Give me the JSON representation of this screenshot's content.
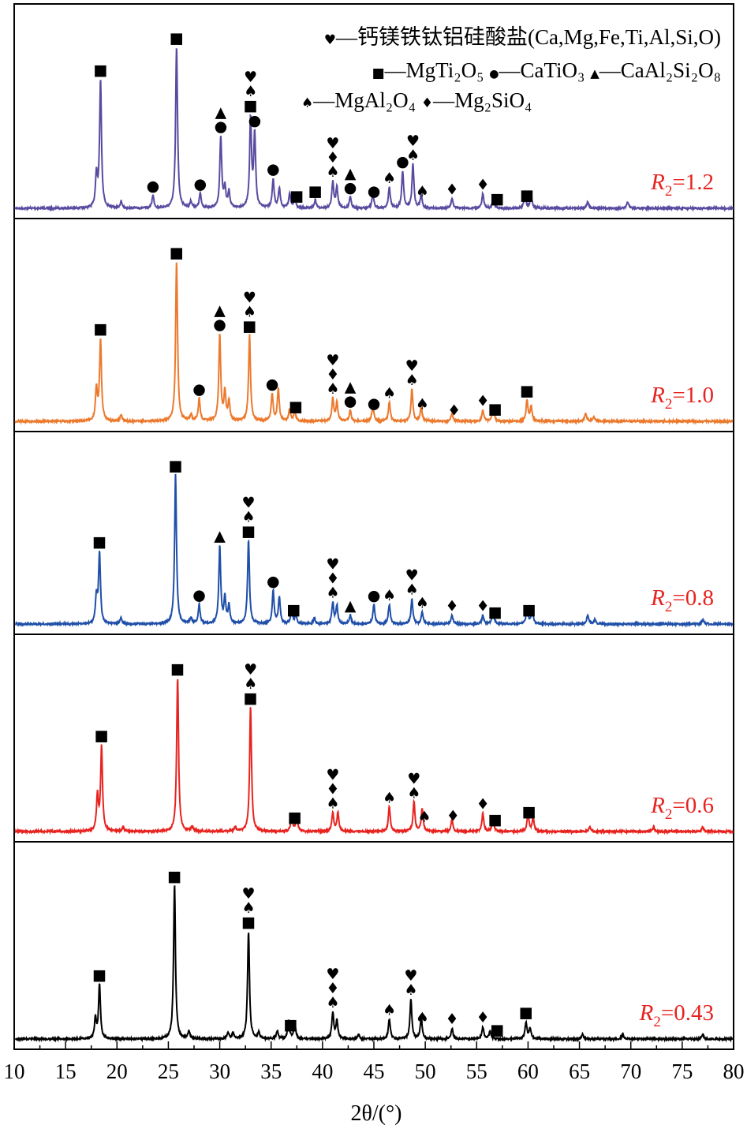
{
  "chart_data": {
    "type": "line",
    "title": "",
    "xlabel": "2θ/(°)",
    "ylabel": "",
    "xlim": [
      10,
      80
    ],
    "xticks": [
      "10",
      "15",
      "20",
      "25",
      "30",
      "35",
      "40",
      "45",
      "50",
      "55",
      "60",
      "65",
      "70",
      "75",
      "80"
    ],
    "grid": false,
    "legend": {
      "placement": "top-right",
      "entries": [
        {
          "symbol": "♥",
          "text": "—钙镁铁钛铝硅酸盐(Ca,Mg,Fe,Ti,Al,Si,O)"
        },
        {
          "symbol": "■",
          "text": "—MgTi₂O₅"
        },
        {
          "symbol": "●",
          "text": "—CaTiO₃"
        },
        {
          "symbol": "▲",
          "text": "—CaAl₂Si₂O₈"
        },
        {
          "symbol": "♠",
          "text": "—MgAl₂O₄"
        },
        {
          "symbol": "♦",
          "text": "—Mg₂SiO₄"
        }
      ]
    },
    "series": [
      {
        "name": "R2=1.2",
        "label_var": "R",
        "label_sub": "2",
        "label_val": "=1.2",
        "color": "#5a4aa0",
        "peaks": [
          [
            18.0,
            0.2
          ],
          [
            18.4,
            0.79
          ],
          [
            20.4,
            0.04
          ],
          [
            23.5,
            0.08
          ],
          [
            25.8,
            1.0
          ],
          [
            27.2,
            0.04
          ],
          [
            28.1,
            0.09
          ],
          [
            30.1,
            0.44
          ],
          [
            30.5,
            0.12
          ],
          [
            30.9,
            0.1
          ],
          [
            33.0,
            0.55
          ],
          [
            33.4,
            0.45
          ],
          [
            35.2,
            0.18
          ],
          [
            35.8,
            0.12
          ],
          [
            36.8,
            0.09
          ],
          [
            37.3,
            0.07
          ],
          [
            39.3,
            0.05
          ],
          [
            41.0,
            0.16
          ],
          [
            41.4,
            0.13
          ],
          [
            42.7,
            0.07
          ],
          [
            44.9,
            0.09
          ],
          [
            46.5,
            0.13
          ],
          [
            47.8,
            0.23
          ],
          [
            48.8,
            0.27
          ],
          [
            49.6,
            0.08
          ],
          [
            52.6,
            0.06
          ],
          [
            55.6,
            0.09
          ],
          [
            56.6,
            0.06
          ],
          [
            59.7,
            0.09
          ],
          [
            60.3,
            0.08
          ],
          [
            65.8,
            0.04
          ],
          [
            69.7,
            0.04
          ]
        ],
        "markers": [
          [
            18.4,
            "■"
          ],
          [
            25.8,
            "■"
          ],
          [
            23.5,
            "●"
          ],
          [
            28.1,
            "●"
          ],
          [
            30.1,
            "▲●"
          ],
          [
            33.0,
            "♥♠■"
          ],
          [
            33.4,
            "●"
          ],
          [
            35.2,
            "●"
          ],
          [
            37.5,
            "■"
          ],
          [
            39.3,
            "■"
          ],
          [
            41.0,
            "♥♦♠"
          ],
          [
            42.7,
            "▲●"
          ],
          [
            45.0,
            "●"
          ],
          [
            46.5,
            "♠"
          ],
          [
            47.8,
            "●"
          ],
          [
            48.8,
            "♥♠"
          ],
          [
            49.7,
            "♠"
          ],
          [
            52.6,
            "♦"
          ],
          [
            55.6,
            "♦"
          ],
          [
            57.0,
            "■"
          ],
          [
            59.9,
            "■"
          ]
        ]
      },
      {
        "name": "R2=1.0",
        "label_var": "R",
        "label_sub": "2",
        "label_val": "=1.0",
        "color": "#ec7a2e",
        "peaks": [
          [
            18.0,
            0.2
          ],
          [
            18.4,
            0.51
          ],
          [
            20.4,
            0.04
          ],
          [
            25.8,
            1.0
          ],
          [
            27.2,
            0.04
          ],
          [
            28.0,
            0.14
          ],
          [
            30.0,
            0.54
          ],
          [
            30.5,
            0.18
          ],
          [
            30.9,
            0.12
          ],
          [
            32.9,
            0.54
          ],
          [
            35.1,
            0.17
          ],
          [
            35.7,
            0.2
          ],
          [
            36.8,
            0.07
          ],
          [
            37.3,
            0.06
          ],
          [
            41.0,
            0.14
          ],
          [
            41.4,
            0.12
          ],
          [
            42.7,
            0.07
          ],
          [
            44.9,
            0.1
          ],
          [
            46.5,
            0.12
          ],
          [
            48.7,
            0.2
          ],
          [
            49.6,
            0.09
          ],
          [
            52.6,
            0.05
          ],
          [
            55.6,
            0.07
          ],
          [
            56.6,
            0.09
          ],
          [
            59.9,
            0.13
          ],
          [
            60.3,
            0.09
          ],
          [
            65.6,
            0.05
          ],
          [
            66.4,
            0.03
          ]
        ],
        "markers": [
          [
            18.4,
            "■"
          ],
          [
            25.8,
            "■"
          ],
          [
            28.0,
            "●"
          ],
          [
            30.0,
            "▲●"
          ],
          [
            32.9,
            "♥♠■"
          ],
          [
            35.1,
            "●"
          ],
          [
            37.4,
            "■"
          ],
          [
            41.0,
            "♥♦♠"
          ],
          [
            42.7,
            "▲●"
          ],
          [
            45.0,
            "●"
          ],
          [
            46.5,
            "♠"
          ],
          [
            48.7,
            "♥♠"
          ],
          [
            49.7,
            "♠"
          ],
          [
            52.8,
            "♦"
          ],
          [
            55.6,
            "♦"
          ],
          [
            56.8,
            "■"
          ],
          [
            59.9,
            "■"
          ]
        ]
      },
      {
        "name": "R2=0.8",
        "label_var": "R",
        "label_sub": "2",
        "label_val": "=0.8",
        "color": "#1f4fa8",
        "peaks": [
          [
            18.0,
            0.18
          ],
          [
            18.3,
            0.47
          ],
          [
            20.4,
            0.04
          ],
          [
            25.7,
            1.0
          ],
          [
            27.2,
            0.04
          ],
          [
            28.0,
            0.13
          ],
          [
            30.0,
            0.52
          ],
          [
            30.5,
            0.17
          ],
          [
            30.9,
            0.12
          ],
          [
            32.8,
            0.56
          ],
          [
            35.2,
            0.22
          ],
          [
            35.8,
            0.18
          ],
          [
            37.0,
            0.09
          ],
          [
            37.4,
            0.06
          ],
          [
            39.2,
            0.04
          ],
          [
            41.0,
            0.14
          ],
          [
            41.4,
            0.12
          ],
          [
            42.7,
            0.06
          ],
          [
            45.0,
            0.13
          ],
          [
            46.5,
            0.13
          ],
          [
            48.7,
            0.17
          ],
          [
            49.7,
            0.08
          ],
          [
            52.6,
            0.06
          ],
          [
            55.6,
            0.06
          ],
          [
            56.6,
            0.09
          ],
          [
            59.9,
            0.11
          ],
          [
            60.4,
            0.1
          ],
          [
            65.8,
            0.06
          ],
          [
            66.5,
            0.03
          ],
          [
            77.0,
            0.03
          ]
        ],
        "markers": [
          [
            18.3,
            "■"
          ],
          [
            25.7,
            "■"
          ],
          [
            28.0,
            "●"
          ],
          [
            30.0,
            "▲"
          ],
          [
            32.8,
            "♥♠■"
          ],
          [
            35.2,
            "●"
          ],
          [
            37.2,
            "■"
          ],
          [
            41.0,
            "♥♦♠"
          ],
          [
            42.7,
            "▲"
          ],
          [
            45.0,
            "●"
          ],
          [
            46.5,
            "♠"
          ],
          [
            48.7,
            "♥♠"
          ],
          [
            49.7,
            "♠"
          ],
          [
            52.6,
            "♦"
          ],
          [
            55.6,
            "♦"
          ],
          [
            56.8,
            "■"
          ],
          [
            60.1,
            "■"
          ]
        ]
      },
      {
        "name": "R2=0.6",
        "label_var": "R",
        "label_sub": "2",
        "label_val": "=0.6",
        "color": "#e8231f",
        "peaks": [
          [
            18.1,
            0.23
          ],
          [
            18.5,
            0.55
          ],
          [
            20.6,
            0.03
          ],
          [
            25.9,
            1.0
          ],
          [
            27.3,
            0.03
          ],
          [
            31.5,
            0.03
          ],
          [
            33.0,
            0.81
          ],
          [
            37.0,
            0.1
          ],
          [
            37.5,
            0.1
          ],
          [
            41.0,
            0.12
          ],
          [
            41.5,
            0.12
          ],
          [
            46.5,
            0.16
          ],
          [
            48.9,
            0.19
          ],
          [
            49.7,
            0.15
          ],
          [
            52.6,
            0.08
          ],
          [
            55.6,
            0.12
          ],
          [
            56.6,
            0.08
          ],
          [
            60.0,
            0.12
          ],
          [
            60.5,
            0.09
          ],
          [
            66.0,
            0.03
          ],
          [
            72.2,
            0.03
          ],
          [
            77.0,
            0.03
          ]
        ],
        "markers": [
          [
            18.5,
            "■"
          ],
          [
            25.9,
            "■"
          ],
          [
            33.0,
            "♥♠■"
          ],
          [
            37.3,
            "■"
          ],
          [
            41.0,
            "♥♦♠"
          ],
          [
            46.5,
            "♠"
          ],
          [
            48.9,
            "♥♠"
          ],
          [
            49.9,
            "♠"
          ],
          [
            52.7,
            "♦"
          ],
          [
            55.6,
            "♦"
          ],
          [
            56.8,
            "■"
          ],
          [
            60.1,
            "■"
          ]
        ]
      },
      {
        "name": "R2=0.43",
        "label_var": "R",
        "label_sub": "2",
        "label_val": "=0.43",
        "color": "#000000",
        "peaks": [
          [
            17.9,
            0.13
          ],
          [
            18.3,
            0.35
          ],
          [
            25.6,
            1.0
          ],
          [
            27.0,
            0.05
          ],
          [
            30.8,
            0.04
          ],
          [
            31.3,
            0.04
          ],
          [
            32.8,
            0.7
          ],
          [
            33.8,
            0.04
          ],
          [
            35.6,
            0.05
          ],
          [
            36.7,
            0.12
          ],
          [
            37.3,
            0.11
          ],
          [
            41.0,
            0.17
          ],
          [
            41.4,
            0.12
          ],
          [
            43.5,
            0.03
          ],
          [
            46.5,
            0.13
          ],
          [
            48.6,
            0.26
          ],
          [
            49.6,
            0.14
          ],
          [
            52.6,
            0.07
          ],
          [
            55.6,
            0.08
          ],
          [
            56.3,
            0.05
          ],
          [
            59.8,
            0.11
          ],
          [
            60.2,
            0.07
          ],
          [
            65.3,
            0.03
          ],
          [
            69.2,
            0.03
          ],
          [
            77.0,
            0.03
          ]
        ],
        "markers": [
          [
            18.3,
            "■"
          ],
          [
            25.6,
            "■"
          ],
          [
            32.8,
            "♥♠■"
          ],
          [
            36.9,
            "■"
          ],
          [
            41.0,
            "♥♦♠"
          ],
          [
            46.5,
            "♠"
          ],
          [
            48.6,
            "♥♠"
          ],
          [
            49.7,
            "♠"
          ],
          [
            52.6,
            "♦"
          ],
          [
            55.6,
            "♦"
          ],
          [
            57.0,
            "■"
          ],
          [
            59.8,
            "■"
          ]
        ]
      }
    ]
  }
}
